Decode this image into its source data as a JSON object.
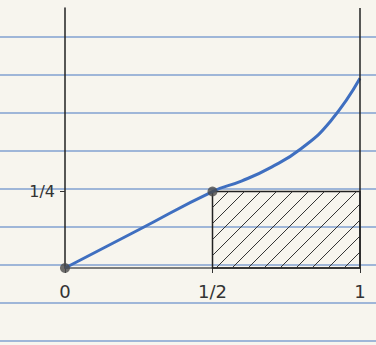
{
  "chart_data": {
    "type": "line",
    "x": [
      0,
      0.25,
      0.5,
      0.6,
      0.7,
      0.8,
      0.9,
      1
    ],
    "values": [
      0,
      0.125,
      0.25,
      0.285,
      0.33,
      0.39,
      0.48,
      0.62
    ],
    "color": "#3f6fc0",
    "xlim": [
      0,
      1
    ],
    "ylim": [
      0,
      0.85
    ],
    "xticks": [
      0,
      {
        "value": 0.5,
        "label": "1/2"
      },
      1
    ],
    "yticks": [
      {
        "value": 0.25,
        "label": "1/4"
      }
    ],
    "grid": false,
    "shaded_region": {
      "x": [
        0.5,
        1
      ],
      "y": [
        0,
        0.25
      ]
    },
    "highlighted_points": {
      "x": [
        0,
        0.5
      ],
      "values": [
        0,
        0.25
      ]
    }
  }
}
